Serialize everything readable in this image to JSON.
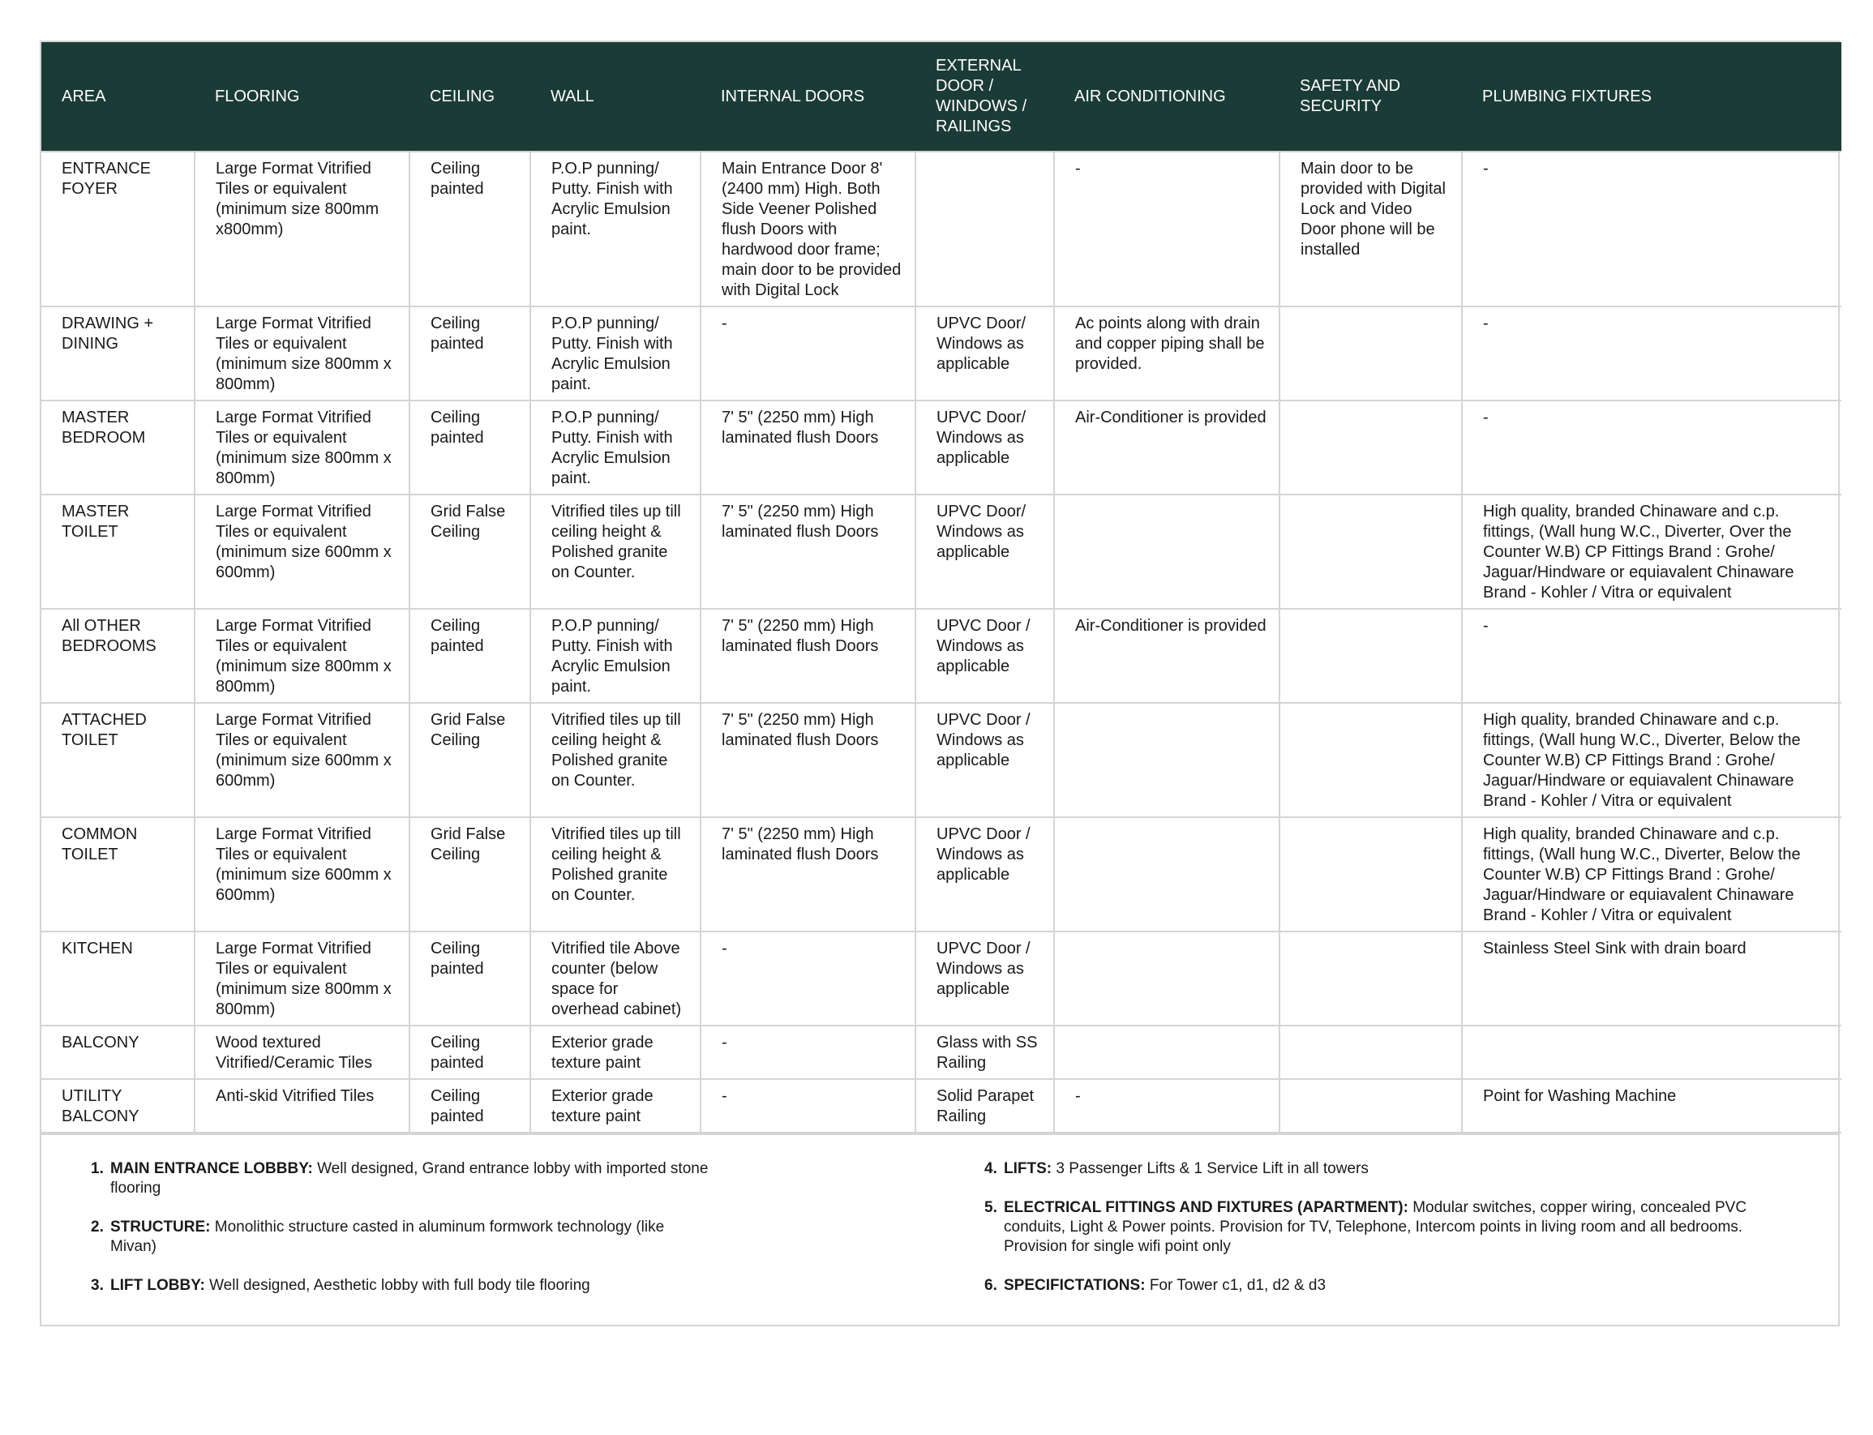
{
  "table": {
    "headers": [
      "AREA",
      "FLOORING",
      "CEILING",
      "WALL",
      "INTERNAL DOORS",
      "EXTERNAL DOOR / WINDOWS / RAILINGS",
      "AIR CONDITIONING",
      "SAFETY AND SECURITY",
      "PLUMBING FIXTURES"
    ],
    "rows": [
      [
        "ENTRANCE FOYER",
        "Large Format Vitrified Tiles or equivalent (minimum size 800mm x800mm)",
        "Ceiling painted",
        "P.O.P punning/ Putty. Finish with Acrylic Emulsion paint.",
        "Main Entrance Door 8' (2400 mm) High. Both Side Veener Polished flush Doors with hardwood door frame; main door to be provided with Digital Lock",
        null,
        "-",
        "Main door to be provided with Digital Lock and Video Door phone will be installed",
        "-"
      ],
      [
        "DRAWING + DINING",
        "Large Format Vitrified Tiles or equivalent (minimum size 800mm x 800mm)",
        "Ceiling painted",
        "P.O.P punning/ Putty. Finish with Acrylic Emulsion paint.",
        "-",
        "UPVC Door/ Windows as applicable",
        "Ac points along with drain and copper piping shall be provided.",
        null,
        "-"
      ],
      [
        "MASTER BEDROOM",
        "Large Format Vitrified Tiles or equivalent (minimum size 800mm x 800mm)",
        "Ceiling painted",
        "P.O.P punning/ Putty. Finish with Acrylic Emulsion paint.",
        "7' 5\" (2250 mm) High laminated flush Doors",
        "UPVC Door/ Windows as applicable",
        "Air-Conditioner is provided",
        null,
        "-"
      ],
      [
        "MASTER TOILET",
        "Large Format Vitrified Tiles or equivalent (minimum size 600mm x 600mm)",
        "Grid False Ceiling",
        "Vitrified tiles up till ceiling height & Polished granite on Counter.",
        "7' 5\" (2250 mm) High laminated flush Doors",
        "UPVC Door/ Windows as applicable",
        null,
        null,
        "High quality, branded Chinaware and c.p. fittings, (Wall hung W.C., Diverter, Over the Counter W.B) CP Fittings Brand : Grohe/ Jaguar/Hindware or equiavalent Chinaware Brand - Kohler / Vitra or equivalent"
      ],
      [
        "All OTHER BEDROOMS",
        "Large Format Vitrified Tiles or equivalent (minimum size 800mm x 800mm)",
        "Ceiling painted",
        "P.O.P punning/ Putty. Finish with Acrylic Emulsion paint.",
        "7' 5\" (2250 mm) High laminated flush Doors",
        "UPVC Door / Windows as applicable",
        "Air-Conditioner is provided",
        null,
        "-"
      ],
      [
        "ATTACHED TOILET",
        "Large Format Vitrified Tiles or equivalent (minimum size 600mm x 600mm)",
        "Grid False Ceiling",
        "Vitrified tiles up till ceiling height & Polished granite on Counter.",
        "7' 5\" (2250 mm) High laminated flush Doors",
        "UPVC Door / Windows as applicable",
        null,
        null,
        "High quality, branded Chinaware and c.p. fittings, (Wall hung W.C., Diverter, Below the Counter W.B) CP Fittings Brand : Grohe/ Jaguar/Hindware or equiavalent Chinaware Brand - Kohler / Vitra or equivalent"
      ],
      [
        "COMMON TOILET",
        "Large Format Vitrified Tiles or equivalent (minimum size 600mm x 600mm)",
        "Grid False Ceiling",
        "Vitrified tiles up till ceiling height & Polished granite on Counter.",
        "7' 5\" (2250 mm) High laminated flush Doors",
        "UPVC Door / Windows as applicable",
        null,
        null,
        "High quality, branded Chinaware and c.p. fittings, (Wall hung W.C., Diverter, Below the Counter W.B) CP Fittings Brand : Grohe/ Jaguar/Hindware or equiavalent Chinaware Brand - Kohler / Vitra or equivalent"
      ],
      [
        "KITCHEN",
        "Large Format Vitrified Tiles or equivalent (minimum size 800mm x 800mm)",
        "Ceiling painted",
        "Vitrified tile Above counter (below space for overhead cabinet)",
        "-",
        "UPVC Door / Windows as applicable",
        null,
        null,
        "Stainless Steel Sink with drain board"
      ],
      [
        "BALCONY",
        "Wood textured Vitrified/Ceramic Tiles",
        "Ceiling painted",
        "Exterior grade texture paint",
        "-",
        "Glass with SS Railing",
        null,
        null,
        null
      ],
      [
        "UTILITY BALCONY",
        "Anti-skid Vitrified Tiles",
        "Ceiling painted",
        "Exterior grade texture paint",
        "-",
        "Solid Parapet Railing",
        "-",
        null,
        "Point for Washing Machine"
      ]
    ]
  },
  "notes": {
    "left": [
      {
        "number": "1.",
        "label": "MAIN ENTRANCE LOBBBY:",
        "text": "Well designed, Grand entrance lobby with imported stone flooring"
      },
      {
        "number": "2.",
        "label": "STRUCTURE:",
        "text": "Monolithic structure casted in aluminum formwork technology (like Mivan)"
      },
      {
        "number": "3.",
        "label": "LIFT LOBBY:",
        "text": "Well designed, Aesthetic lobby with full body tile flooring"
      }
    ],
    "right": [
      {
        "number": "4.",
        "label": "LIFTS:",
        "text": "3 Passenger Lifts & 1 Service Lift in all towers"
      },
      {
        "number": "5.",
        "label": "ELECTRICAL FITTINGS AND FIXTURES (APARTMENT):",
        "text": "Modular switches, copper wiring, concealed PVC conduits, Light & Power points. Provision for TV, Telephone, Intercom points in living room and all bedrooms. Provision for single wifi point only"
      },
      {
        "number": "6.",
        "label": "SPECIFICTATIONS:",
        "text": "For Tower c1, d1, d2 & d3"
      }
    ]
  }
}
